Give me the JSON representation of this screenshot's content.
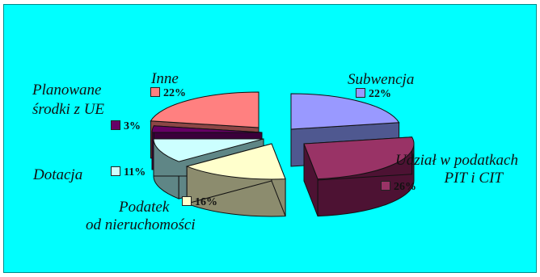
{
  "chart_data": {
    "type": "pie",
    "title": "",
    "slices": [
      {
        "key": "subw",
        "name": "Subwencja",
        "value": 22,
        "label": "22%",
        "color": "#9999ff",
        "side": "#4f5890"
      },
      {
        "key": "udzial",
        "name": "Udział w podatkach PIT i CIT",
        "value": 26,
        "label": "26%",
        "color": "#993366",
        "side": "#4d1233"
      },
      {
        "key": "podatek",
        "name": "Podatek od nieruchomości",
        "value": 16,
        "label": "16%",
        "color": "#ffffcc",
        "side": "#8c8c6e"
      },
      {
        "key": "dotacja",
        "name": "Dotacja",
        "value": 11,
        "label": "11%",
        "color": "#ccffff",
        "side": "#5f8686"
      },
      {
        "key": "plan",
        "name": "Planowane środki z UE",
        "value": 3,
        "label": "3%",
        "color": "#660066",
        "side": "#3a003a"
      },
      {
        "key": "inne",
        "name": "Inne",
        "value": 22,
        "label": "22%",
        "color": "#ff8080",
        "side": "#8c4646"
      }
    ]
  }
}
